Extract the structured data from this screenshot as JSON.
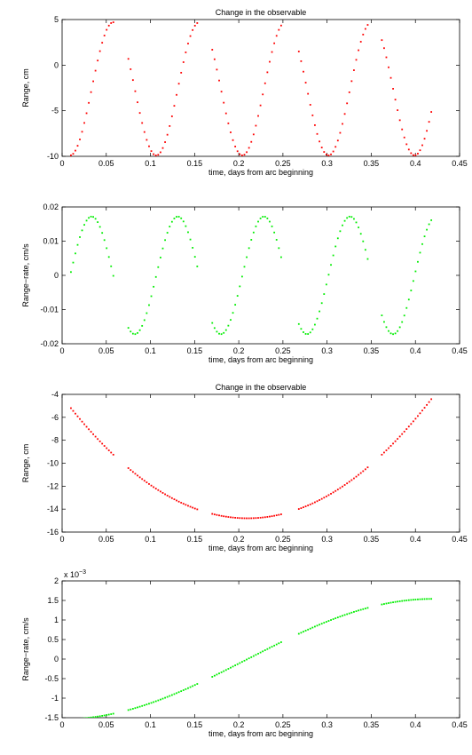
{
  "colors": {
    "red_series": "#ff0000",
    "green_series": "#00ee00",
    "axes": "#000000",
    "background": "#ffffff"
  },
  "chart_data": [
    {
      "type": "scatter",
      "title": "Change in the observable",
      "xlabel": "time, days from arc beginning",
      "ylabel": "Range, cm",
      "xlim": [
        0,
        0.45
      ],
      "ylim": [
        -10,
        5
      ],
      "xticks": [
        "0",
        "0.05",
        "0.1",
        "0.15",
        "0.2",
        "0.25",
        "0.3",
        "0.35",
        "0.4",
        "0.45"
      ],
      "yticks": [
        "-10",
        "-5",
        "0",
        "5"
      ],
      "grid": false,
      "color": "#ff0000",
      "series": [
        {
          "arcs": [
            {
              "t0": 0.01,
              "t1": 0.058,
              "n": 20
            },
            {
              "t0": 0.075,
              "t1": 0.153,
              "n": 31
            },
            {
              "t0": 0.17,
              "t1": 0.248,
              "n": 31
            },
            {
              "t0": 0.268,
              "t1": 0.346,
              "n": 31
            },
            {
              "t0": 0.362,
              "t1": 0.418,
              "n": 23
            }
          ],
          "model": {
            "form": "mean+amp*sin(2*pi*(t-phase)/period)",
            "mean": -2.6,
            "amp": 7.3,
            "period": 0.0975,
            "phase": 0.0335
          }
        }
      ]
    },
    {
      "type": "scatter",
      "title": "",
      "xlabel": "time, days from arc beginning",
      "ylabel": "Range−rate, cm/s",
      "xlim": [
        0,
        0.45
      ],
      "ylim": [
        -0.02,
        0.02
      ],
      "xticks": [
        "0",
        "0.05",
        "0.1",
        "0.15",
        "0.2",
        "0.25",
        "0.3",
        "0.35",
        "0.4",
        "0.45"
      ],
      "yticks": [
        "-0.02",
        "-0.01",
        "0",
        "0.01",
        "0.02"
      ],
      "grid": false,
      "color": "#00ee00",
      "series": [
        {
          "arcs": [
            {
              "t0": 0.01,
              "t1": 0.058,
              "n": 20
            },
            {
              "t0": 0.075,
              "t1": 0.153,
              "n": 31
            },
            {
              "t0": 0.17,
              "t1": 0.248,
              "n": 31
            },
            {
              "t0": 0.268,
              "t1": 0.346,
              "n": 31
            },
            {
              "t0": 0.362,
              "t1": 0.418,
              "n": 23
            }
          ],
          "model": {
            "form": "amp*cos(2*pi*(t-phase)/period)",
            "amp": 0.0172,
            "period": 0.0975,
            "phase": 0.0335
          }
        }
      ]
    },
    {
      "type": "scatter",
      "title": "Change in the observable",
      "xlabel": "time, days from arc beginning",
      "ylabel": "Range, cm",
      "xlim": [
        0,
        0.45
      ],
      "ylim": [
        -16,
        -4
      ],
      "xticks": [
        "0",
        "0.05",
        "0.1",
        "0.15",
        "0.2",
        "0.25",
        "0.3",
        "0.35",
        "0.4",
        "0.45"
      ],
      "yticks": [
        "-16",
        "-14",
        "-12",
        "-10",
        "-8",
        "-6",
        "-4"
      ],
      "grid": false,
      "color": "#ff0000",
      "series": [
        {
          "arcs": [
            {
              "t0": 0.01,
              "t1": 0.058,
              "n": 20
            },
            {
              "t0": 0.075,
              "t1": 0.153,
              "n": 31
            },
            {
              "t0": 0.17,
              "t1": 0.248,
              "n": 31
            },
            {
              "t0": 0.268,
              "t1": 0.346,
              "n": 31
            },
            {
              "t0": 0.362,
              "t1": 0.418,
              "n": 23
            }
          ],
          "model": {
            "form": "min+k*(t-center)^2",
            "min": -14.8,
            "k": 240,
            "center": 0.21
          }
        }
      ]
    },
    {
      "type": "scatter",
      "title": "",
      "xlabel": "time, days from arc beginning",
      "ylabel": "Range−rate, cm/s",
      "scale_factor": "x 10",
      "scale_exponent": "−3",
      "xlim": [
        0,
        0.45
      ],
      "ylim": [
        -1.5,
        2
      ],
      "xticks": [
        "0",
        "0.05",
        "0.1",
        "0.15",
        "0.2",
        "0.25",
        "0.3",
        "0.35",
        "0.4",
        "0.45"
      ],
      "yticks": [
        "-1.5",
        "-1",
        "-0.5",
        "0",
        "0.5",
        "1",
        "1.5",
        "2"
      ],
      "grid": false,
      "color": "#00ee00",
      "series": [
        {
          "arcs": [
            {
              "t0": 0.01,
              "t1": 0.058,
              "n": 20
            },
            {
              "t0": 0.075,
              "t1": 0.153,
              "n": 31
            },
            {
              "t0": 0.17,
              "t1": 0.248,
              "n": 31
            },
            {
              "t0": 0.268,
              "t1": 0.346,
              "n": 31
            },
            {
              "t0": 0.362,
              "t1": 0.418,
              "n": 23
            }
          ],
          "model": {
            "form": "amp*sin(2*pi*(t-center)/period)",
            "amp": 1.54,
            "period": 0.84,
            "center": 0.21
          }
        }
      ]
    }
  ]
}
